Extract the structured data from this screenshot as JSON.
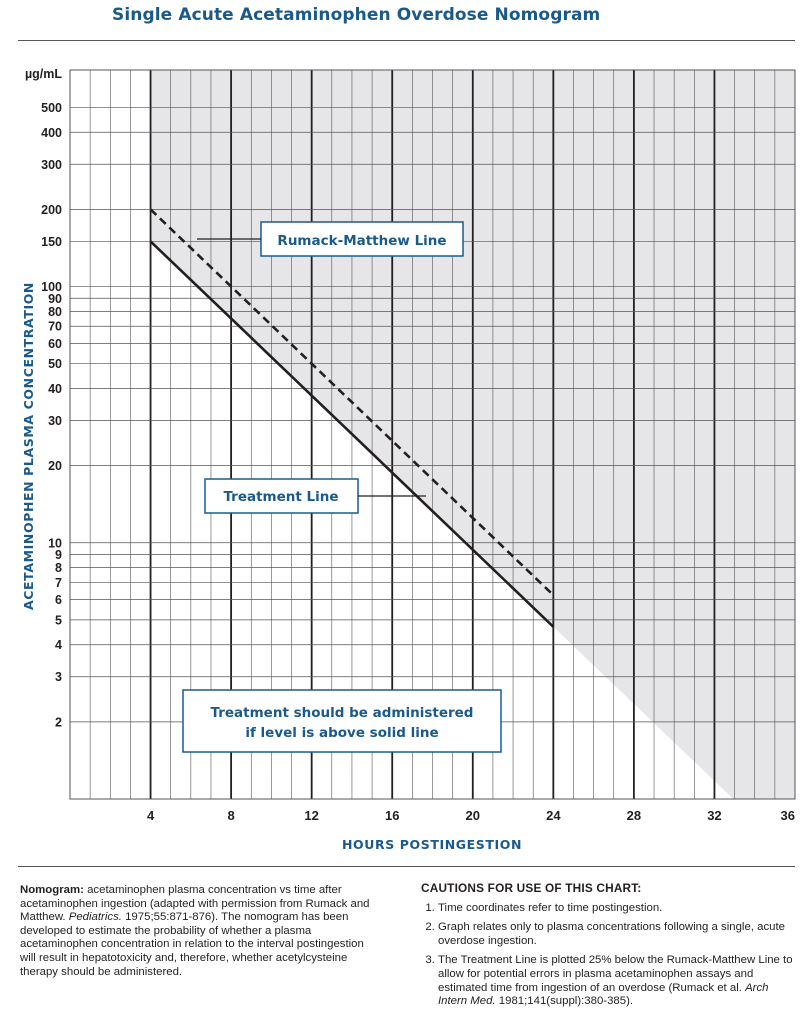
{
  "title": "Single Acute Acetaminophen Overdose Nomogram",
  "colors": {
    "title_blue": "#1a5a8a",
    "shade_gray": "#e6e6e8",
    "grid": "#555555",
    "line": "#231f20"
  },
  "chart_data": {
    "type": "line",
    "xlabel": "HOURS POSTINGESTION",
    "ylabel": "ACETAMINOPHEN PLASMA CONCENTRATION",
    "y_unit_label": "µg/mL",
    "y_scale": "log",
    "xlim": [
      0,
      36
    ],
    "ylim": [
      1,
      700
    ],
    "x_ticks": [
      "4",
      "8",
      "12",
      "16",
      "20",
      "24",
      "28",
      "32",
      "36"
    ],
    "y_ticks": [
      "500",
      "400",
      "300",
      "200",
      "150",
      "100",
      "90",
      "80",
      "70",
      "60",
      "50",
      "40",
      "30",
      "20",
      "10",
      "9",
      "8",
      "7",
      "6",
      "5",
      "4",
      "3",
      "2"
    ],
    "series": [
      {
        "name": "Rumack-Matthew Line",
        "style": "dashed",
        "x": [
          4,
          24
        ],
        "y": [
          200,
          6.25
        ]
      },
      {
        "name": "Treatment Line",
        "style": "solid",
        "x": [
          4,
          24
        ],
        "y": [
          150,
          4.7
        ]
      }
    ],
    "shaded_region": "above treatment line from hour 4",
    "annotation": [
      "Treatment should be administered",
      "if level is above solid line"
    ]
  },
  "nomogram_note": {
    "lead": "Nomogram:",
    "text1": " acetaminophen plasma concentration vs time after acetaminophen ingestion (adapted with permission from Rumack and Matthew. ",
    "journal": "Pediatrics.",
    "text2": " 1975;55:871-876). The nomogram has been developed to estimate the probability of whether a plasma acetaminophen concentration in relation to the interval postingestion will result in hepatotoxicity and, therefore, whether acetylcysteine therapy should be administered."
  },
  "cautions": {
    "heading": "CAUTIONS FOR USE OF THIS CHART:",
    "item1": "Time coordinates refer to time postingestion.",
    "item2": "Graph relates only to plasma concentrations following a single, acute overdose ingestion.",
    "item3_a": "The Treatment Line is plotted 25% below the Rumack-Matthew Line to allow for potential errors in plasma acetaminophen assays and estimated time from ingestion of an overdose (Rumack et al. ",
    "item3_journal": "Arch Intern Med.",
    "item3_b": " 1981;141(suppl):380-385)."
  }
}
